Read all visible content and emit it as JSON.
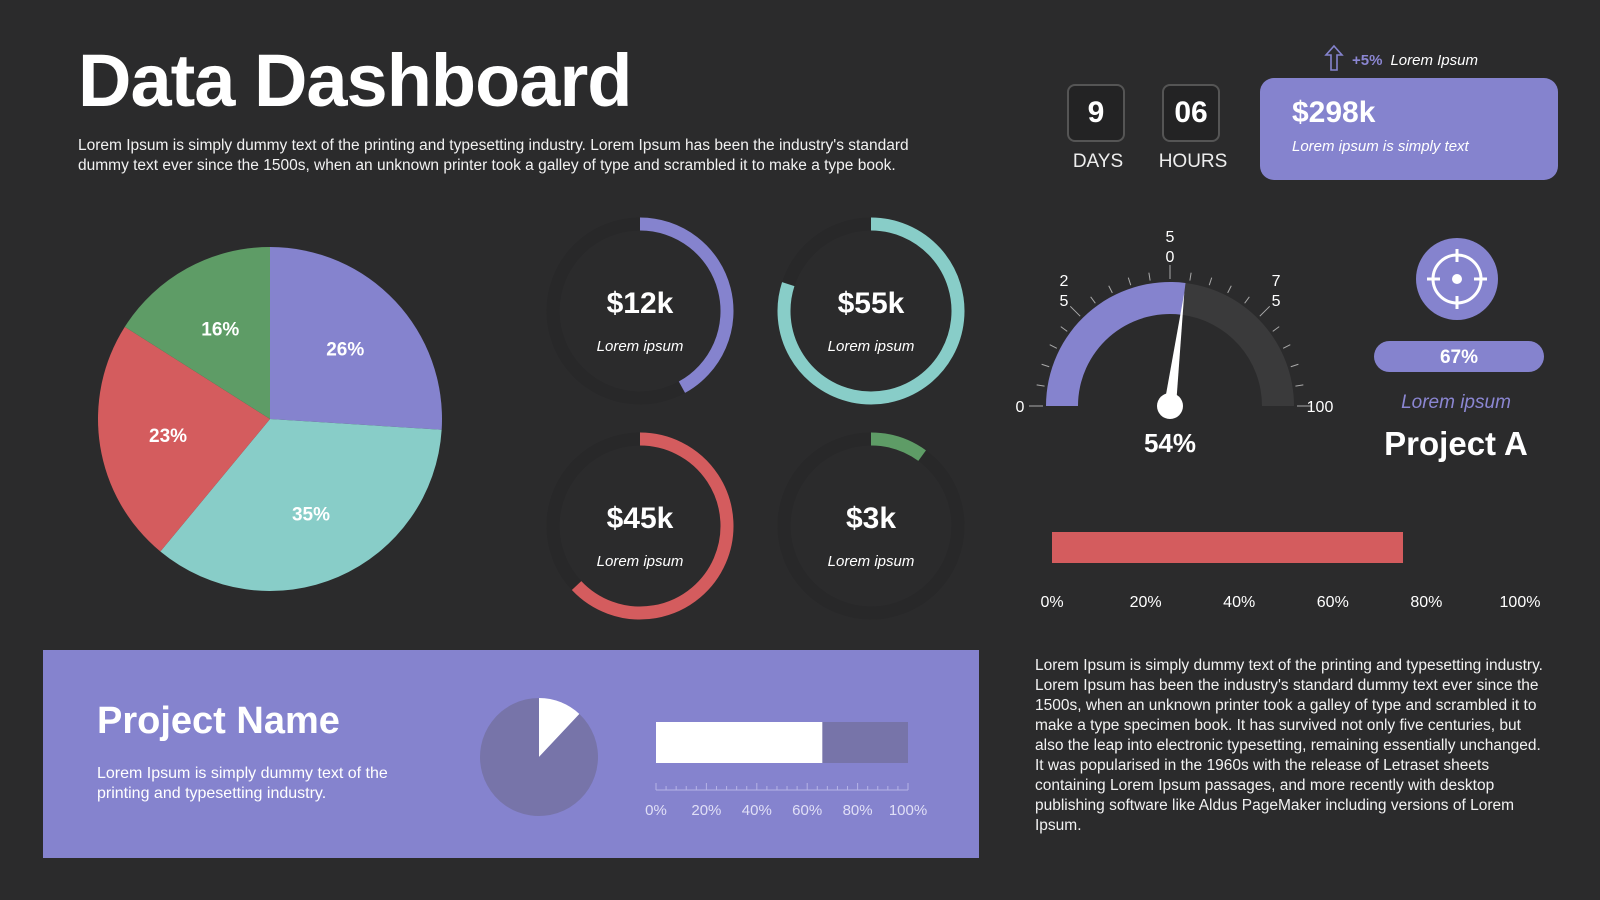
{
  "header": {
    "title": "Data Dashboard",
    "intro": "Lorem Ipsum is simply dummy text of the printing and typesetting industry. Lorem Ipsum has been the industry's standard dummy text ever since the 1500s, when an unknown printer took a galley of type and scrambled it to make a type book."
  },
  "countdown": {
    "days_value": "9",
    "days_label": "DAYS",
    "hours_value": "06",
    "hours_label": "HOURS"
  },
  "trend": {
    "icon": "arrow-up-icon",
    "change": "+5%",
    "label": "Lorem Ipsum"
  },
  "revenue_card": {
    "value": "$298k",
    "subtitle": "Lorem ipsum is simply text"
  },
  "colors": {
    "background": "#2b2b2c",
    "purple": "#8583ce",
    "teal": "#88cdc8",
    "red": "#d45c5e",
    "green": "#5e9c66",
    "dark": "#3a3a3b"
  },
  "rings": [
    {
      "value": "$12k",
      "label": "Lorem ipsum",
      "fraction": 0.42,
      "color": "#8583ce"
    },
    {
      "value": "$55k",
      "label": "Lorem ipsum",
      "fraction": 0.8,
      "color": "#88cdc8"
    },
    {
      "value": "$45k",
      "label": "Lorem ipsum",
      "fraction": 0.63,
      "color": "#d45c5e"
    },
    {
      "value": "$3k",
      "label": "Lorem ipsum",
      "fraction": 0.1,
      "color": "#5e9c66"
    }
  ],
  "gauge": {
    "ticks": [
      {
        "value": 0,
        "label": "0"
      },
      {
        "value": 25,
        "label": "2\n5"
      },
      {
        "value": 50,
        "label": "5\n0"
      },
      {
        "value": 75,
        "label": "7\n5"
      },
      {
        "value": 100,
        "label": "100"
      }
    ]
  },
  "project_a": {
    "icon": "target-icon",
    "progress": "67%",
    "progress_value": 0.67,
    "label": "Lorem ipsum",
    "title": "Project A"
  },
  "project_panel": {
    "name": "Project Name",
    "description": "Lorem Ipsum is simply dummy text of the printing and typesetting industry.",
    "bar_ticks": [
      "0%",
      "20%",
      "40%",
      "60%",
      "80%",
      "100%"
    ]
  },
  "body_text": "Lorem Ipsum is simply dummy text of the printing and typesetting industry. Lorem Ipsum has been the industry's standard dummy text ever since the 1500s, when an unknown printer took a galley of type and scrambled it to make a type specimen book. It has survived not only five centuries, but also the leap into electronic typesetting, remaining essentially unchanged. It was popularised in the 1960s with the release of Letraset sheets containing Lorem Ipsum passages, and more recently with desktop publishing software like Aldus PageMaker including versions of Lorem Ipsum.",
  "chart_data": [
    {
      "type": "pie",
      "categories": [
        "26%",
        "35%",
        "23%",
        "16%"
      ],
      "values": [
        26,
        35,
        23,
        16
      ],
      "colors": [
        "#8583ce",
        "#88cdc8",
        "#d45c5e",
        "#5e9c66"
      ]
    },
    {
      "type": "gauge",
      "value": 54,
      "value_label": "54%",
      "range": [
        0,
        100
      ]
    },
    {
      "type": "bar",
      "orientation": "horizontal",
      "values": [
        75
      ],
      "xlim": [
        0,
        100
      ],
      "tick_labels": [
        "0%",
        "20%",
        "40%",
        "60%",
        "80%",
        "100%"
      ],
      "color": "#d45c5e"
    },
    {
      "type": "pie",
      "values": [
        12,
        88
      ],
      "colors": [
        "#ffffff",
        "#7774a9"
      ]
    },
    {
      "type": "bar",
      "orientation": "horizontal",
      "values": [
        66
      ],
      "xlim": [
        0,
        100
      ],
      "color": "#ffffff"
    }
  ]
}
